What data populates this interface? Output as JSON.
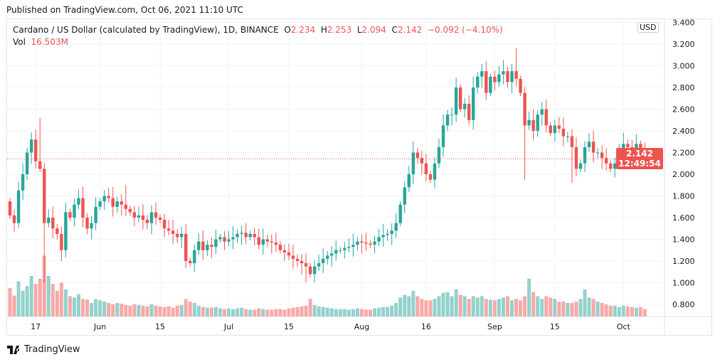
{
  "published": "Published on TradingView.com, Oct 06, 2021 11:10 UTC",
  "legend": {
    "title": "Cardano / US Dollar (calculated by TradingView), 1D, BINANCE",
    "o_label": "O",
    "o": "2.234",
    "h_label": "H",
    "h": "2.253",
    "l_label": "L",
    "l": "2.094",
    "c_label": "C",
    "c": "2.142",
    "change": "−0.092 (−4.10%)",
    "vol_label": "Vol",
    "vol": "16.503M"
  },
  "currency": "USD",
  "last_price": "2.142",
  "countdown": "12:49:54",
  "brand": "TradingView",
  "colors": {
    "up": "#26a69a",
    "down": "#ef5350",
    "up_vol": "#93d2cc",
    "down_vol": "#f7a9a7"
  },
  "chart_data": {
    "type": "candlestick",
    "title": "Cardano / US Dollar, 1D, BINANCE",
    "start_date": "2021-05-11",
    "end_date": "2021-10-06",
    "ylim": [
      0.7,
      3.4
    ],
    "y_ticks": [
      "3.400",
      "3.200",
      "3.000",
      "2.800",
      "2.600",
      "2.400",
      "2.200",
      "2.000",
      "1.800",
      "1.600",
      "1.400",
      "1.200",
      "1.000",
      "0.800"
    ],
    "x_ticks": [
      {
        "label": "17",
        "day": 6
      },
      {
        "label": "Jun",
        "day": 21
      },
      {
        "label": "15",
        "day": 35
      },
      {
        "label": "Jul",
        "day": 51
      },
      {
        "label": "15",
        "day": 65
      },
      {
        "label": "Aug",
        "day": 82
      },
      {
        "label": "16",
        "day": 97
      },
      {
        "label": "Sep",
        "day": 113
      },
      {
        "label": "15",
        "day": 127
      },
      {
        "label": "Oct",
        "day": 143
      }
    ],
    "first_open": 1.75,
    "close": [
      1.62,
      1.55,
      1.85,
      2.0,
      2.2,
      2.32,
      2.12,
      2.05,
      1.55,
      1.6,
      1.5,
      1.45,
      1.3,
      1.65,
      1.6,
      1.72,
      1.78,
      1.6,
      1.5,
      1.55,
      1.7,
      1.75,
      1.8,
      1.78,
      1.7,
      1.75,
      1.72,
      1.68,
      1.65,
      1.6,
      1.62,
      1.58,
      1.55,
      1.65,
      1.6,
      1.58,
      1.5,
      1.48,
      1.45,
      1.42,
      1.45,
      1.2,
      1.18,
      1.3,
      1.38,
      1.3,
      1.35,
      1.33,
      1.4,
      1.42,
      1.38,
      1.4,
      1.42,
      1.45,
      1.46,
      1.42,
      1.45,
      1.42,
      1.35,
      1.4,
      1.38,
      1.37,
      1.35,
      1.3,
      1.28,
      1.25,
      1.22,
      1.2,
      1.18,
      1.15,
      1.08,
      1.15,
      1.18,
      1.22,
      1.25,
      1.27,
      1.3,
      1.3,
      1.32,
      1.33,
      1.35,
      1.38,
      1.37,
      1.36,
      1.35,
      1.38,
      1.42,
      1.44,
      1.45,
      1.48,
      1.55,
      1.72,
      1.88,
      2.0,
      2.2,
      2.15,
      2.1,
      2.0,
      1.95,
      2.1,
      2.25,
      2.45,
      2.55,
      2.55,
      2.8,
      2.6,
      2.65,
      2.5,
      2.8,
      2.9,
      2.95,
      2.75,
      2.9,
      2.85,
      2.92,
      2.95,
      2.85,
      2.95,
      2.88,
      2.75,
      2.45,
      2.5,
      2.4,
      2.55,
      2.6,
      2.45,
      2.38,
      2.45,
      2.42,
      2.35,
      2.35,
      2.25,
      2.05,
      2.1,
      2.25,
      2.3,
      2.2,
      2.2,
      2.15,
      2.1,
      2.05,
      2.1,
      2.2,
      2.28,
      2.25,
      2.22,
      2.28,
      2.234,
      2.142
    ],
    "wick_overrides": {
      "7": [
        2.52,
        null
      ],
      "8": [
        null,
        1.0
      ],
      "12": [
        null,
        1.2
      ],
      "27": [
        1.9,
        null
      ],
      "69": [
        null,
        1.0
      ],
      "118": [
        3.16,
        null
      ],
      "120": [
        null,
        1.95
      ],
      "131": [
        null,
        1.92
      ]
    },
    "volume_m": [
      420,
      310,
      520,
      380,
      450,
      600,
      480,
      560,
      900,
      600,
      480,
      380,
      500,
      400,
      300,
      280,
      330,
      260,
      250,
      200,
      260,
      240,
      220,
      200,
      180,
      200,
      190,
      170,
      160,
      180,
      170,
      160,
      150,
      180,
      160,
      150,
      140,
      150,
      130,
      160,
      170,
      260,
      220,
      200,
      160,
      140,
      130,
      130,
      140,
      120,
      110,
      120,
      110,
      120,
      130,
      110,
      100,
      100,
      120,
      110,
      100,
      100,
      110,
      110,
      100,
      120,
      130,
      140,
      150,
      160,
      260,
      170,
      150,
      140,
      130,
      120,
      110,
      110,
      110,
      100,
      110,
      120,
      110,
      100,
      100,
      120,
      130,
      140,
      140,
      160,
      200,
      280,
      320,
      300,
      380,
      300,
      260,
      240,
      240,
      260,
      300,
      350,
      360,
      300,
      400,
      320,
      300,
      260,
      300,
      280,
      300,
      260,
      250,
      240,
      260,
      280,
      300,
      240,
      260,
      240,
      300,
      560,
      360,
      300,
      260,
      300,
      280,
      260,
      220,
      220,
      200,
      200,
      220,
      260,
      400,
      280,
      260,
      220,
      200,
      180,
      160,
      160,
      140,
      160,
      150,
      140,
      130,
      140,
      110
    ]
  }
}
